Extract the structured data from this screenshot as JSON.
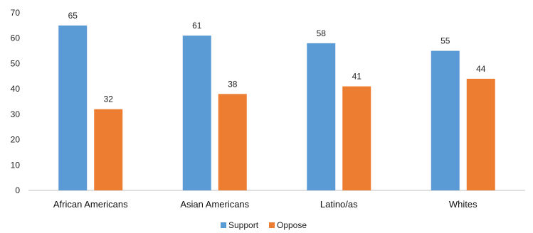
{
  "chart_data": {
    "type": "bar",
    "categories": [
      "African Americans",
      "Asian Americans",
      "Latino/as",
      "Whites"
    ],
    "series": [
      {
        "name": "Support",
        "values": [
          65,
          61,
          58,
          55
        ],
        "color": "#5B9BD5"
      },
      {
        "name": "Oppose",
        "values": [
          32,
          38,
          41,
          44
        ],
        "color": "#ED7D31"
      }
    ],
    "yticks": [
      0,
      10,
      20,
      30,
      40,
      50,
      60,
      70
    ],
    "ylim": [
      0,
      70
    ],
    "grid": false,
    "legend": "bottom-center",
    "data_labels": true,
    "axis_color": "#bfbfbf"
  }
}
